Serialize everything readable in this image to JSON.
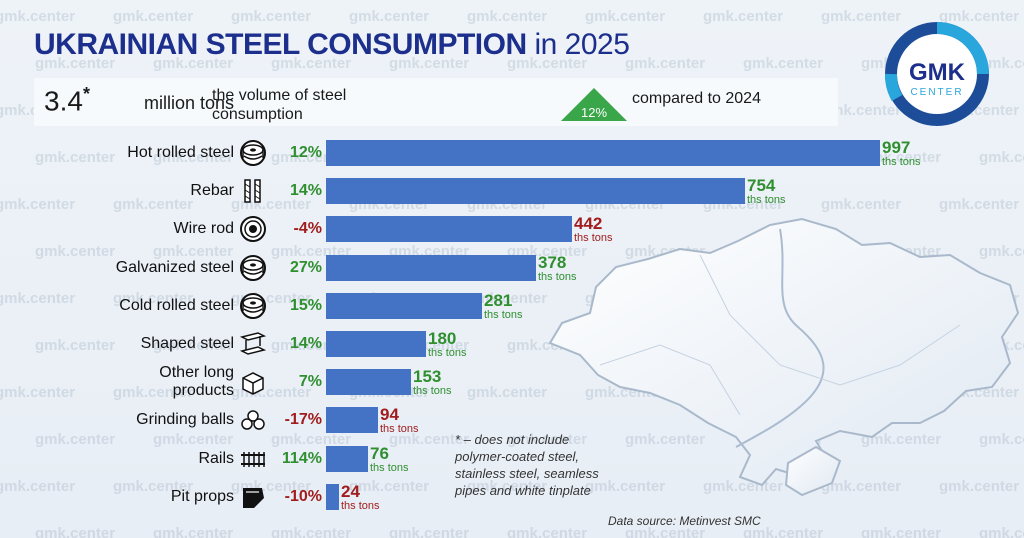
{
  "header": {
    "title_bold": "UKRAINIAN STEEL CONSUMPTION",
    "title_light": " in 2025"
  },
  "summary": {
    "value": "3.4",
    "value_mark": "*",
    "unit": "million tons",
    "description": "the volume of steel consumption",
    "change_pct": "12%",
    "change_text": "compared to 2024"
  },
  "logo": {
    "main": "GMK",
    "sub": "CENTER"
  },
  "watermark_text": "gmk.center",
  "footnote": "* – does not include polymer-coated steel, stainless steel, seamless pipes and white tinplate",
  "source": "Data source: Metinvest SMC",
  "chart_data": {
    "type": "bar",
    "orientation": "horizontal",
    "unit": "ths tons",
    "xlim": [
      0,
      997
    ],
    "bar_color": "#4472c4",
    "positive_color": "#2f8f2f",
    "negative_color": "#a11d1d",
    "categories": [
      "Hot rolled steel",
      "Rebar",
      "Wire rod",
      "Galvanized steel",
      "Cold rolled steel",
      "Shaped steel",
      "Other long products",
      "Grinding balls",
      "Rails",
      "Pit props"
    ],
    "values": [
      997,
      754,
      442,
      378,
      281,
      180,
      153,
      94,
      76,
      24
    ],
    "changes": [
      "12%",
      "14%",
      "-4%",
      "27%",
      "15%",
      "14%",
      "7%",
      "-17%",
      "114%",
      "-10%"
    ],
    "icons": [
      "coil-icon",
      "rebar-icon",
      "wire-coil-icon",
      "coil-icon",
      "coil-icon",
      "i-beam-icon",
      "cube-icon",
      "balls-icon",
      "rails-icon",
      "pit-prop-icon"
    ]
  }
}
